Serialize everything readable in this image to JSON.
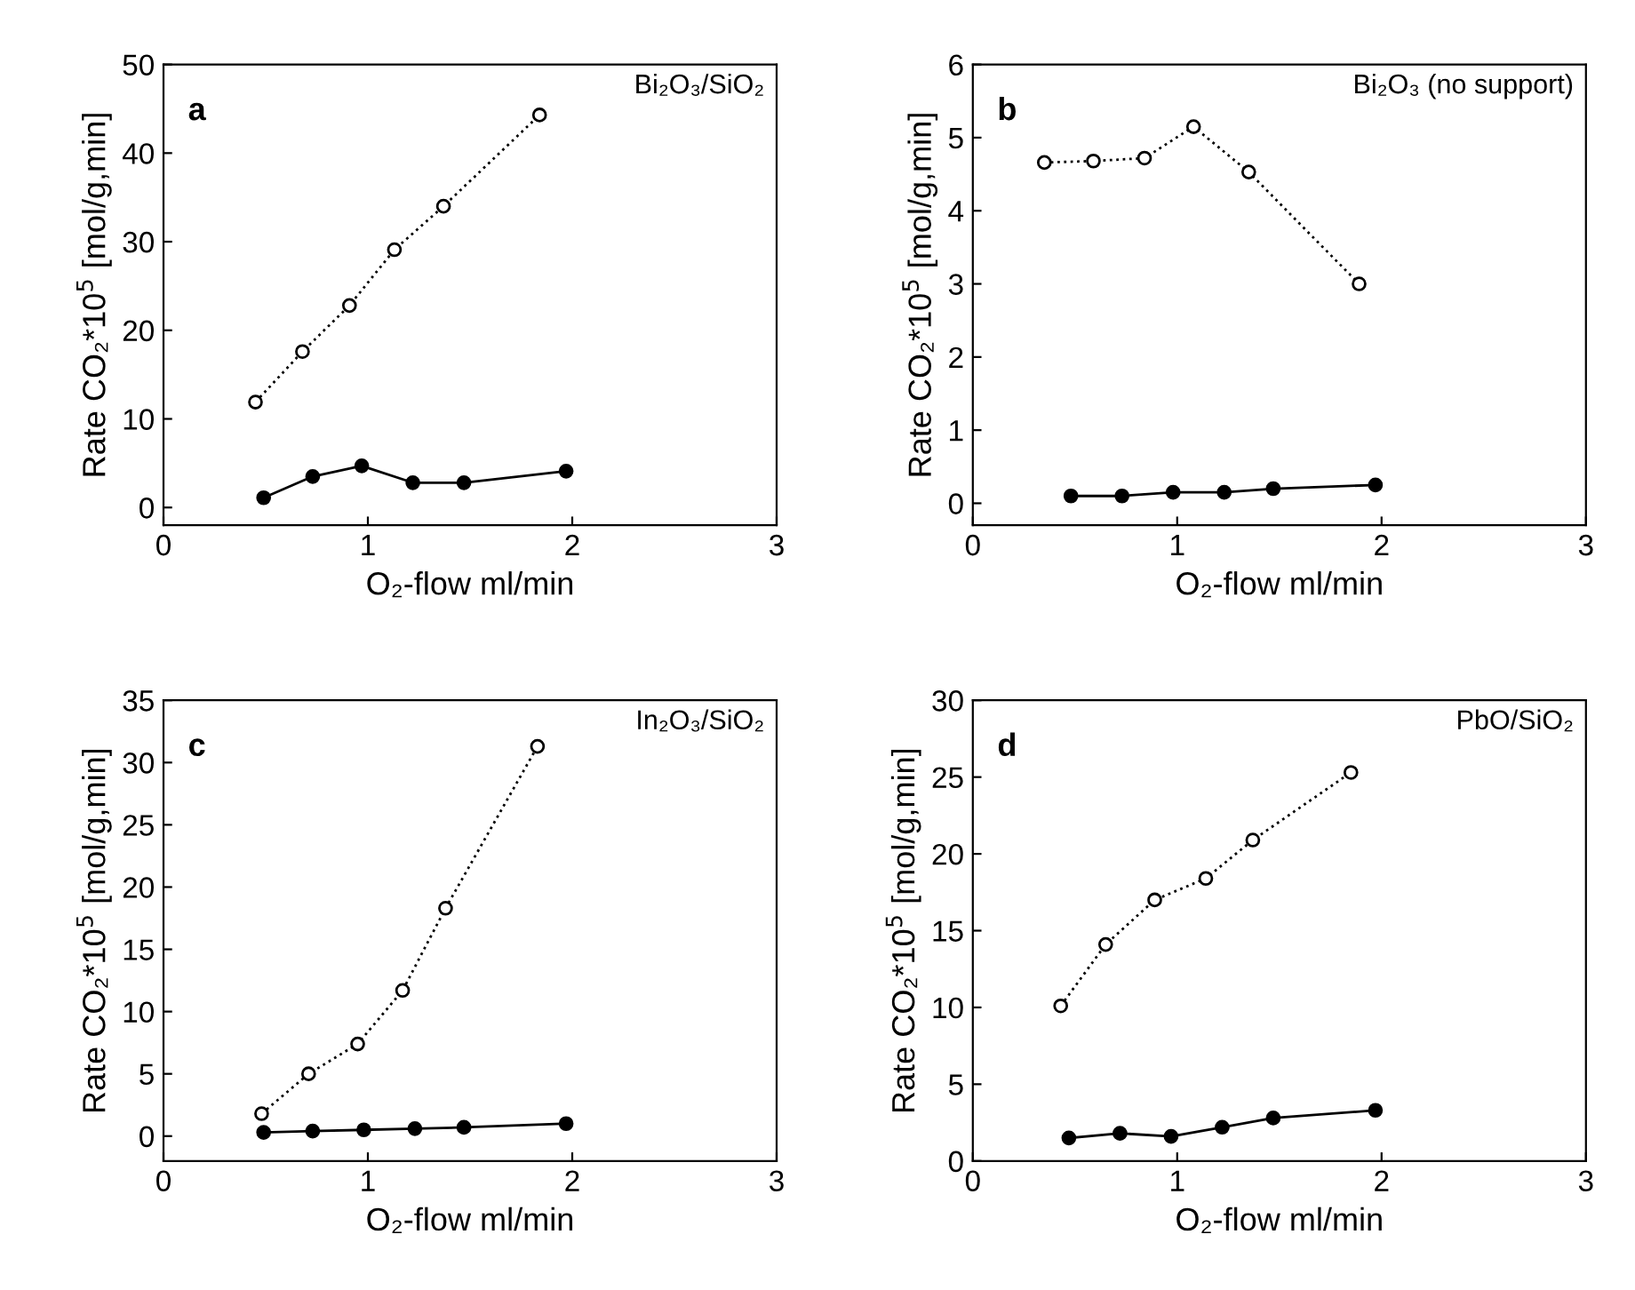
{
  "chart_data": [
    {
      "type": "line",
      "title": "a",
      "subtitle": "Bi₂O₃/SiO₂",
      "xlabel": "O₂-flow ml/min",
      "ylabel": "Rate CO₂*10$^{5}$ [mol/g,min]",
      "xlim": [
        0,
        3
      ],
      "xticks": [
        0,
        1,
        2,
        3
      ],
      "ylim": [
        -2,
        50
      ],
      "yticks": [
        0,
        10,
        20,
        30,
        40,
        50
      ],
      "grid": false,
      "marker": "circle",
      "series": [
        {
          "x": [
            0.45,
            0.68,
            0.91,
            1.13,
            1.37,
            1.84
          ],
          "values": [
            11.9,
            17.6,
            22.8,
            29.1,
            34.0,
            44.3
          ],
          "color": "#000000",
          "line_style": "dotted"
        },
        {
          "x": [
            0.49,
            0.73,
            0.97,
            1.22,
            1.47,
            1.97
          ],
          "values": [
            1.1,
            3.5,
            4.7,
            2.8,
            2.8,
            4.1
          ],
          "color": "#000000",
          "line_style": "solid"
        }
      ]
    },
    {
      "type": "line",
      "title": "b",
      "subtitle": "Bi₂O₃ (no support)",
      "xlabel": "O₂-flow ml/min",
      "ylabel": "Rate CO₂*10$^{5}$ [mol/g,min]",
      "xlim": [
        0,
        3
      ],
      "xticks": [
        0,
        1,
        2,
        3
      ],
      "ylim": [
        -0.3,
        6
      ],
      "yticks": [
        0,
        1,
        2,
        3,
        4,
        5,
        6
      ],
      "grid": false,
      "marker": "circle",
      "series": [
        {
          "x": [
            0.35,
            0.59,
            0.84,
            1.08,
            1.35,
            1.89
          ],
          "values": [
            4.66,
            4.68,
            4.72,
            5.15,
            4.53,
            3.0
          ],
          "color": "#000000",
          "line_style": "dotted"
        },
        {
          "x": [
            0.48,
            0.73,
            0.98,
            1.23,
            1.47,
            1.97
          ],
          "values": [
            0.1,
            0.1,
            0.15,
            0.15,
            0.2,
            0.25
          ],
          "color": "#000000",
          "line_style": "solid"
        }
      ]
    },
    {
      "type": "line",
      "title": "c",
      "subtitle": "In₂O₃/SiO₂",
      "xlabel": "O₂-flow ml/min",
      "ylabel": "Rate CO₂*10$^{5}$ [mol/g,min]",
      "xlim": [
        0,
        3
      ],
      "xticks": [
        0,
        1,
        2,
        3
      ],
      "ylim": [
        -2,
        35
      ],
      "yticks": [
        0,
        5,
        10,
        15,
        20,
        25,
        30,
        35
      ],
      "grid": false,
      "marker": "circle",
      "series": [
        {
          "x": [
            0.48,
            0.71,
            0.95,
            1.17,
            1.38,
            1.83
          ],
          "values": [
            1.8,
            5.0,
            7.4,
            11.7,
            18.3,
            31.3
          ],
          "color": "#000000",
          "line_style": "dotted"
        },
        {
          "x": [
            0.49,
            0.73,
            0.98,
            1.23,
            1.47,
            1.97
          ],
          "values": [
            0.3,
            0.4,
            0.5,
            0.6,
            0.7,
            1.0
          ],
          "color": "#000000",
          "line_style": "solid"
        }
      ]
    },
    {
      "type": "line",
      "title": "d",
      "subtitle": "PbO/SiO₂",
      "xlabel": "O₂-flow ml/min",
      "ylabel": "Rate CO₂*10$^{5}$ [mol/g,min]",
      "xlim": [
        0,
        3
      ],
      "xticks": [
        0,
        1,
        2,
        3
      ],
      "ylim": [
        0,
        30
      ],
      "yticks": [
        0,
        5,
        10,
        15,
        20,
        25,
        30
      ],
      "grid": false,
      "marker": "circle",
      "series": [
        {
          "x": [
            0.43,
            0.65,
            0.89,
            1.14,
            1.37,
            1.85
          ],
          "values": [
            10.1,
            14.1,
            17.0,
            18.4,
            20.9,
            25.3
          ],
          "color": "#000000",
          "line_style": "dotted"
        },
        {
          "x": [
            0.47,
            0.72,
            0.97,
            1.22,
            1.47,
            1.97
          ],
          "values": [
            1.5,
            1.8,
            1.6,
            2.2,
            2.8,
            3.3
          ],
          "color": "#000000",
          "line_style": "solid"
        }
      ]
    }
  ]
}
